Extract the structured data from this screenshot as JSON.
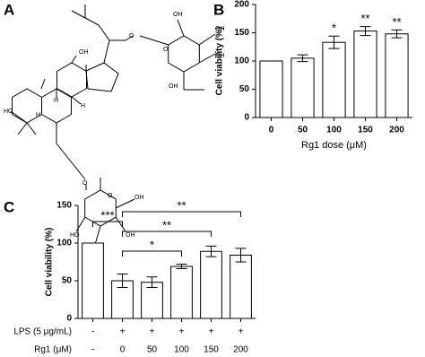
{
  "structure": {
    "label": "A",
    "atom_labels": [
      "HO",
      "H",
      "H",
      "OH",
      "H",
      "O",
      "O",
      "OH",
      "OH",
      "OH",
      "OH",
      "O",
      "O",
      "OH",
      "HO",
      "OH",
      "OH"
    ]
  },
  "chart_data": [
    {
      "type": "bar",
      "label": "B",
      "categories": [
        "0",
        "50",
        "100",
        "150",
        "200"
      ],
      "values": [
        100,
        105,
        133,
        153,
        148
      ],
      "errors": [
        0,
        6,
        11,
        8,
        7
      ],
      "significance": [
        null,
        null,
        "*",
        "**",
        "**"
      ],
      "xlabel": "Rg1 dose (μM)",
      "ylabel": "Cell viability (%)",
      "ylim": [
        0,
        200
      ],
      "yticks": [
        0,
        50,
        100,
        150,
        200
      ],
      "color": "#ffffff"
    },
    {
      "type": "bar",
      "label": "C",
      "values": [
        100,
        50,
        48,
        69,
        89,
        84
      ],
      "errors": [
        0,
        9,
        7,
        3,
        7,
        9
      ],
      "ylabel": "Cell viability (%)",
      "ylim": [
        0,
        150
      ],
      "yticks": [
        0,
        50,
        100,
        150
      ],
      "color": "#ffffff",
      "annotations": [
        {
          "text": "***",
          "from": 0,
          "to": 1
        },
        {
          "text": "**",
          "from": 1,
          "to": 5
        },
        {
          "text": "**",
          "from": 1,
          "to": 4
        },
        {
          "text": "*",
          "from": 1,
          "to": 3
        }
      ],
      "table": [
        {
          "label": "LPS (5 μg/mL)",
          "values": [
            "-",
            "+",
            "+",
            "+",
            "+",
            "+"
          ]
        },
        {
          "label": "Rg1 (μM)",
          "values": [
            "-",
            "0",
            "50",
            "100",
            "150",
            "200"
          ]
        }
      ]
    }
  ]
}
